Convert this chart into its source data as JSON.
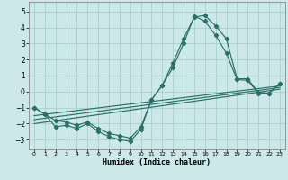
{
  "xlabel": "Humidex (Indice chaleur)",
  "bg_color": "#cde8e8",
  "grid_color": "#aacece",
  "line_color": "#2a7068",
  "xlim": [
    -0.5,
    23.5
  ],
  "ylim": [
    -3.6,
    5.6
  ],
  "xticks": [
    0,
    1,
    2,
    3,
    4,
    5,
    6,
    7,
    8,
    9,
    10,
    11,
    12,
    13,
    14,
    15,
    16,
    17,
    18,
    19,
    20,
    21,
    22,
    23
  ],
  "yticks": [
    -3,
    -2,
    -1,
    0,
    1,
    2,
    3,
    4,
    5
  ],
  "line1_x": [
    0,
    1,
    2,
    3,
    4,
    5,
    6,
    7,
    8,
    9,
    10,
    11,
    12,
    13,
    14,
    15,
    16,
    17,
    18,
    19,
    20,
    21,
    22,
    23
  ],
  "line1_y": [
    -1.0,
    -1.4,
    -2.2,
    -2.1,
    -2.3,
    -2.0,
    -2.5,
    -2.8,
    -3.0,
    -3.1,
    -2.35,
    -0.5,
    0.4,
    1.8,
    3.3,
    4.65,
    4.75,
    4.1,
    3.3,
    0.8,
    0.8,
    -0.05,
    -0.1,
    0.5
  ],
  "line2_x": [
    0,
    1,
    2,
    3,
    4,
    5,
    6,
    7,
    8,
    9,
    10,
    11,
    12,
    13,
    14,
    15,
    16,
    17,
    18,
    19,
    20,
    21,
    22,
    23
  ],
  "line2_y": [
    -1.0,
    -1.4,
    -1.8,
    -1.9,
    -2.1,
    -1.9,
    -2.3,
    -2.6,
    -2.75,
    -2.9,
    -2.2,
    -0.5,
    0.4,
    1.5,
    3.0,
    4.7,
    4.4,
    3.5,
    2.4,
    0.75,
    0.7,
    -0.1,
    -0.1,
    0.5
  ],
  "line3_x": [
    0,
    23
  ],
  "line3_y": [
    -2.0,
    0.15
  ],
  "line4_x": [
    0,
    23
  ],
  "line4_y": [
    -1.75,
    0.25
  ],
  "line5_x": [
    0,
    23
  ],
  "line5_y": [
    -1.5,
    0.35
  ]
}
